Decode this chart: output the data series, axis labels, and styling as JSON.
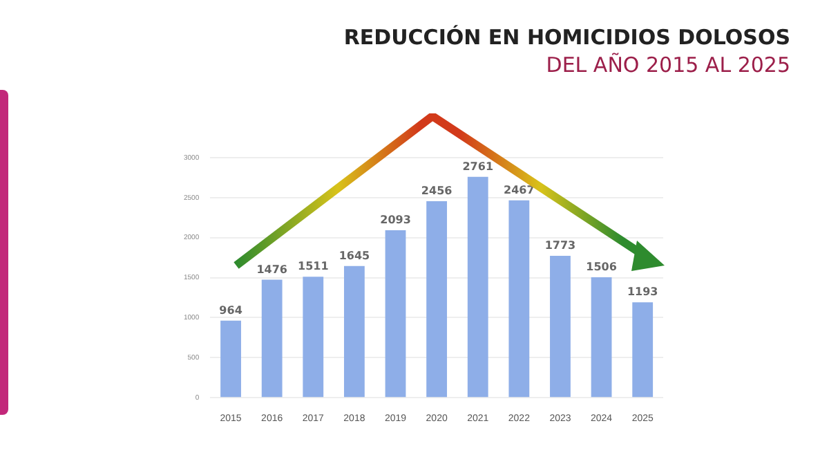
{
  "chart_data": {
    "type": "bar",
    "title": "REDUCCIÓN EN HOMICIDIOS DOLOSOS",
    "subtitle": "DEL AÑO 2015 AL 2025",
    "categories": [
      "2015",
      "2016",
      "2017",
      "2018",
      "2019",
      "2020",
      "2021",
      "2022",
      "2023",
      "2024",
      "2025"
    ],
    "values": [
      964,
      1476,
      1511,
      1645,
      2093,
      2456,
      2761,
      2467,
      1773,
      1506,
      1193
    ],
    "color": "#8eaee8",
    "ylim": [
      0,
      3000
    ],
    "yticks": [
      0,
      500,
      1000,
      1500,
      2000,
      2500,
      3000
    ],
    "grid": "y",
    "data_labels": true
  }
}
